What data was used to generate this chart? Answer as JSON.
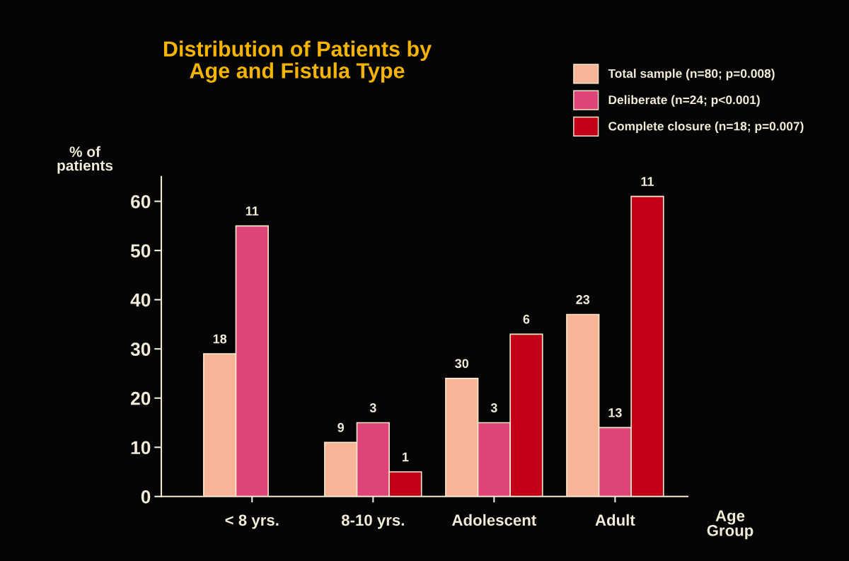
{
  "chart_data": {
    "type": "bar",
    "title": "Distribution of Patients by\nAge and Fistula Type",
    "xlabel": "Age\nGroup",
    "ylabel": "% of\npatients",
    "categories": [
      "< 8 yrs.",
      "8-10 yrs.",
      "Adolescent",
      "Adult"
    ],
    "series": [
      {
        "name": "Total sample (n=80; p=0.008)",
        "color": "#f8b496",
        "values": [
          29,
          11,
          24,
          37
        ]
      },
      {
        "name": "Deliberate (n=24; p<0.001)",
        "color": "#de4479",
        "values": [
          55,
          15,
          15,
          14
        ]
      },
      {
        "name": "Complete closure (n=18; p=0.007)",
        "color": "#c20018",
        "values": [
          null,
          5,
          33,
          61
        ]
      }
    ],
    "annotations": [
      "18",
      "11",
      "9",
      "3",
      "1",
      "30",
      "3",
      "6",
      "23",
      "13",
      "11"
    ],
    "ylim": [
      0,
      65
    ],
    "yticks": [
      0,
      10,
      20,
      30,
      40,
      50,
      60
    ],
    "grid": false,
    "legend": "top right"
  }
}
